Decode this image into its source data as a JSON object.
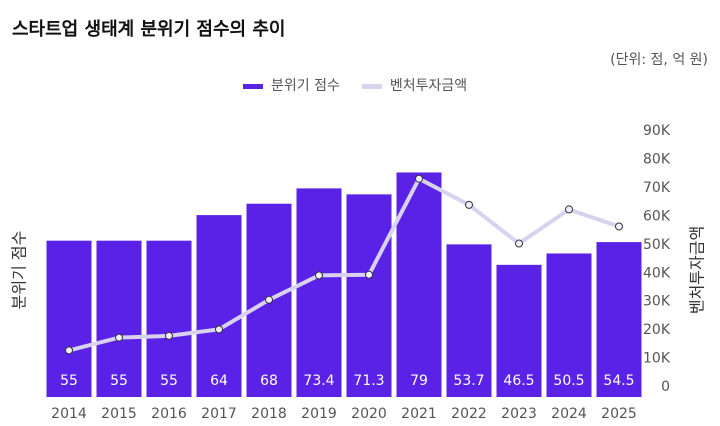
{
  "chart_data": {
    "type": "bar-line",
    "title": "스타트업 생태계 분위기 점수의 추이",
    "unit_note": "(단위: 점, 억 원)",
    "y_label": "분위기 점수",
    "y2_label": "벤처투자금액",
    "categories": [
      "2014",
      "2015",
      "2016",
      "2017",
      "2018",
      "2019",
      "2020",
      "2021",
      "2022",
      "2023",
      "2024",
      "2025"
    ],
    "series": [
      {
        "name": "분위기 점수",
        "color": "#5a22e6",
        "kind": "bar",
        "values": [
          55,
          55,
          55,
          64,
          68,
          73.4,
          71.3,
          79,
          53.7,
          46.5,
          50.5,
          54.5
        ]
      },
      {
        "name": "벤처투자금액",
        "color": "#d8d2f0",
        "kind": "line",
        "axis": "y2",
        "values": [
          16400,
          20900,
          21500,
          23800,
          34200,
          42800,
          43000,
          76800,
          67600,
          54000,
          66000,
          60000
        ]
      }
    ],
    "ylim": [
      0,
      95
    ],
    "y2lim": [
      0,
      95000
    ],
    "y2ticks": [
      0,
      {
        "value": 10000,
        "label": "10K"
      },
      {
        "value": 20000,
        "label": "20K"
      },
      {
        "value": 30000,
        "label": "30K"
      },
      {
        "value": 40000,
        "label": "40K"
      },
      {
        "value": 50000,
        "label": "50K"
      },
      {
        "value": 60000,
        "label": "60K"
      },
      {
        "value": 70000,
        "label": "70K"
      },
      {
        "value": 80000,
        "label": "80K"
      },
      {
        "value": 90000,
        "label": "90K"
      }
    ],
    "legend": "top"
  }
}
